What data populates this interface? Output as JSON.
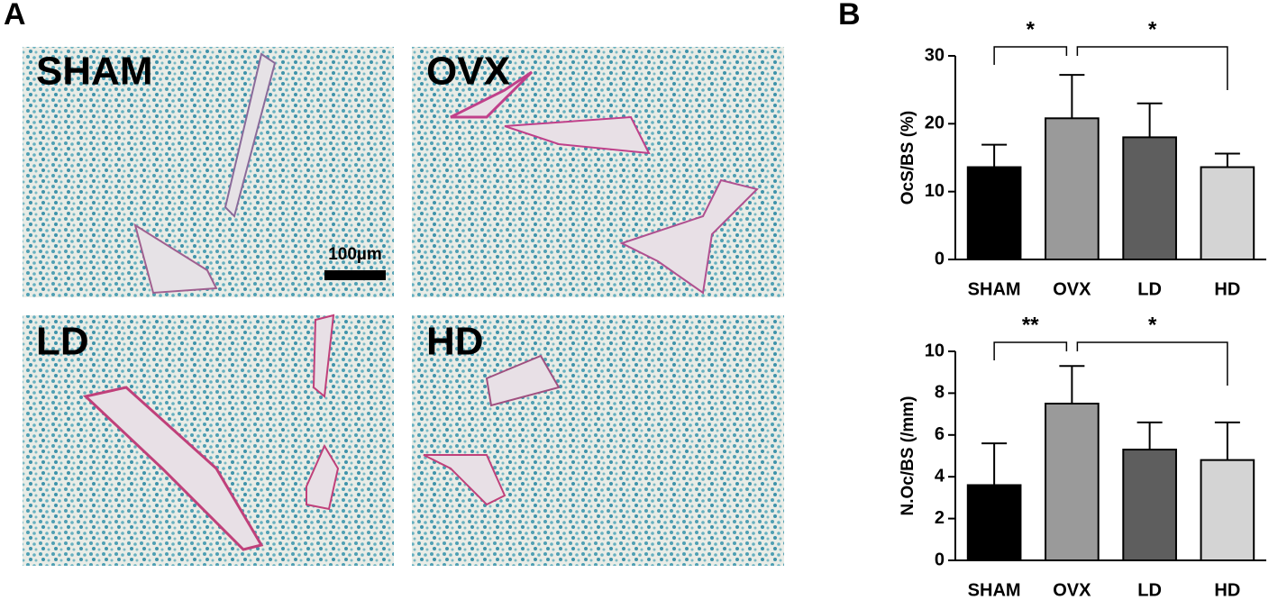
{
  "figure": {
    "panel_labels": [
      "A",
      "B"
    ],
    "images": [
      {
        "label": "SHAM"
      },
      {
        "label": "OVX"
      },
      {
        "label": "LD"
      },
      {
        "label": "HD"
      }
    ],
    "scale_bar": "100µm"
  },
  "chart_data": [
    {
      "type": "bar",
      "ylabel": "OcS/BS (%)",
      "categories": [
        "SHAM",
        "OVX",
        "LD",
        "HD"
      ],
      "values": [
        13.6,
        20.8,
        18.0,
        13.6
      ],
      "errors": [
        3.3,
        6.4,
        5.0,
        2.0
      ],
      "colors": [
        "#000000",
        "#9a9a9a",
        "#5e5e5e",
        "#d4d4d4"
      ],
      "ylim": [
        0,
        30
      ],
      "yticks": [
        0,
        10,
        20,
        30
      ],
      "annotations": [
        "*",
        "*"
      ]
    },
    {
      "type": "bar",
      "ylabel": "N.Oc/BS (/mm)",
      "categories": [
        "SHAM",
        "OVX",
        "LD",
        "HD"
      ],
      "values": [
        3.6,
        7.5,
        5.3,
        4.8
      ],
      "errors": [
        2.0,
        1.8,
        1.3,
        1.8
      ],
      "colors": [
        "#000000",
        "#9a9a9a",
        "#5e5e5e",
        "#d4d4d4"
      ],
      "ylim": [
        0,
        10
      ],
      "yticks": [
        0,
        2,
        4,
        6,
        8,
        10
      ],
      "annotations": [
        "**",
        "*"
      ]
    }
  ]
}
